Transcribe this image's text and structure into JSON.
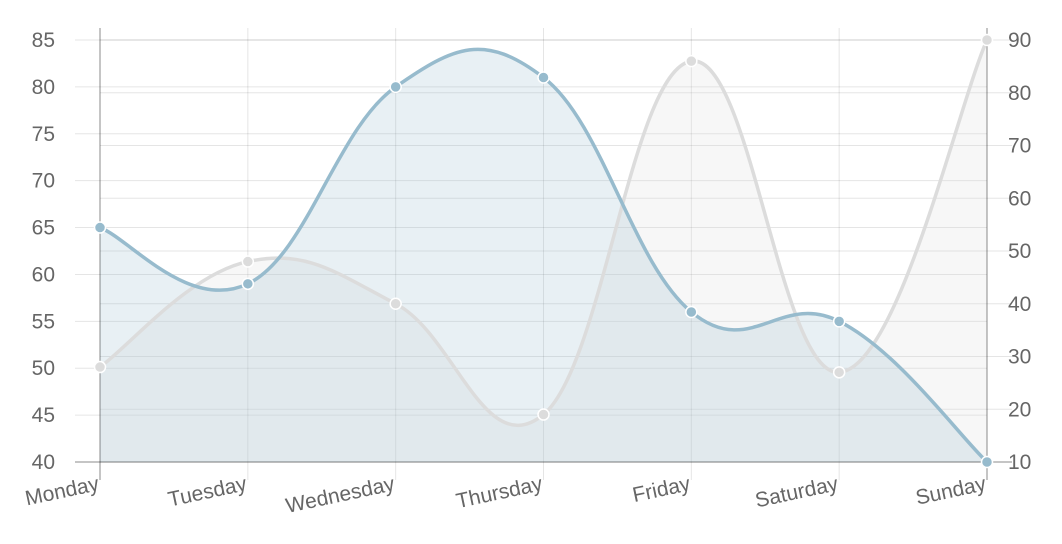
{
  "chart_data": {
    "type": "line",
    "categories": [
      "Monday",
      "Tuesday",
      "Wednesday",
      "Thursday",
      "Friday",
      "Saturday",
      "Sunday"
    ],
    "y_left": {
      "range": [
        40,
        85
      ],
      "ticks": [
        40,
        45,
        50,
        55,
        60,
        65,
        70,
        75,
        80,
        85
      ]
    },
    "y_right": {
      "range": [
        10,
        90
      ],
      "ticks": [
        10,
        20,
        30,
        40,
        50,
        60,
        70,
        80,
        90
      ]
    },
    "series": [
      {
        "axis": "left",
        "values": [
          65,
          59,
          80,
          81,
          56,
          55,
          40
        ],
        "color": "#97bbcd",
        "fill": "rgba(151,187,205,0.22)",
        "point_fill": "#97bbcd"
      },
      {
        "axis": "right",
        "values": [
          28,
          48,
          40,
          19,
          86,
          27,
          90
        ],
        "color": "#dcdcdc",
        "fill": "rgba(220,220,220,0.22)",
        "point_fill": "#dcdcdc"
      }
    ],
    "grid": true,
    "legend": "none",
    "curve": "smooth",
    "filled": true
  }
}
